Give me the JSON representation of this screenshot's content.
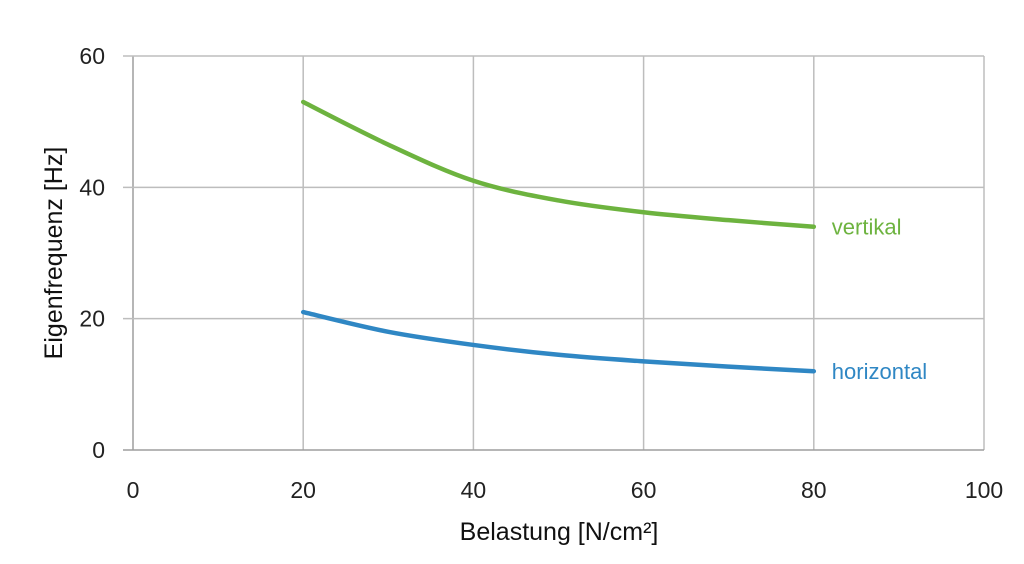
{
  "chart_data": {
    "type": "line",
    "xlabel": "Belastung [N/cm²]",
    "ylabel": "Eigenfrequenz [Hz]",
    "xlim": [
      0,
      100
    ],
    "ylim": [
      0,
      60
    ],
    "xticks": [
      0,
      20,
      40,
      60,
      80,
      100
    ],
    "yticks": [
      0,
      20,
      40,
      60
    ],
    "grid": true,
    "legend": "inline labels at line ends",
    "series": [
      {
        "name": "vertikal",
        "color": "#6db33f",
        "x": [
          20,
          30,
          40,
          50,
          60,
          70,
          80
        ],
        "y": [
          53,
          46.5,
          41,
          38,
          36.2,
          35,
          34
        ]
      },
      {
        "name": "horizontal",
        "color": "#2f87c4",
        "x": [
          20,
          30,
          40,
          50,
          60,
          70,
          80
        ],
        "y": [
          21,
          18,
          16,
          14.5,
          13.5,
          12.7,
          12
        ]
      }
    ]
  }
}
